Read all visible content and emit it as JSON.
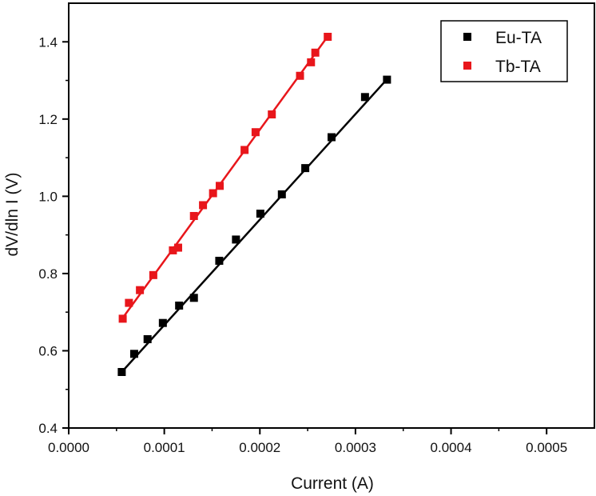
{
  "chart_data": {
    "type": "scatter",
    "xlabel": "Current (A)",
    "ylabel": "dV/dln I (V)",
    "xlim": [
      0,
      0.00055
    ],
    "ylim": [
      0.4,
      1.5
    ],
    "x_ticks": [
      0,
      0.0001,
      0.0002,
      0.0003,
      0.0004,
      0.0005
    ],
    "x_tick_labels": [
      "0.0000",
      "0.0001",
      "0.0002",
      "0.0003",
      "0.0004",
      "0.0005"
    ],
    "y_ticks": [
      0.4,
      0.6,
      0.8,
      1.0,
      1.2,
      1.4
    ],
    "y_tick_labels": [
      "0.4",
      "0.6",
      "0.8",
      "1.0",
      "1.2",
      "1.4"
    ],
    "grid": false,
    "legend_position": "top-right",
    "series": [
      {
        "name": "Eu-TA",
        "color": "#000000",
        "marker": "square",
        "x": [
          5.55e-05,
          6.85e-05,
          8.25e-05,
          9.85e-05,
          0.0001155,
          0.000131,
          0.0001575,
          0.000175,
          0.0002005,
          0.000223,
          0.0002475,
          0.000275,
          0.00031,
          0.000333
        ],
        "y": [
          0.545,
          0.592,
          0.63,
          0.672,
          0.717,
          0.737,
          0.833,
          0.888,
          0.955,
          1.005,
          1.073,
          1.153,
          1.257,
          1.302
        ],
        "fit": {
          "x": [
            5.55e-05,
            0.000333
          ],
          "y": [
            0.545,
            1.303
          ]
        }
      },
      {
        "name": "Tb-TA",
        "color": "#e8161b",
        "marker": "square",
        "x": [
          5.65e-05,
          6.3e-05,
          7.45e-05,
          8.85e-05,
          0.000109,
          0.0001145,
          0.000131,
          0.0001405,
          0.000151,
          0.000158,
          0.000184,
          0.0001955,
          0.0002125,
          0.000242,
          0.0002535,
          0.000258,
          0.000271
        ],
        "y": [
          0.683,
          0.724,
          0.757,
          0.796,
          0.86,
          0.867,
          0.949,
          0.977,
          1.008,
          1.027,
          1.12,
          1.166,
          1.212,
          1.312,
          1.347,
          1.372,
          1.413
        ],
        "fit": {
          "x": [
            5.65e-05,
            0.000271
          ],
          "y": [
            0.685,
            1.414
          ]
        }
      }
    ]
  }
}
